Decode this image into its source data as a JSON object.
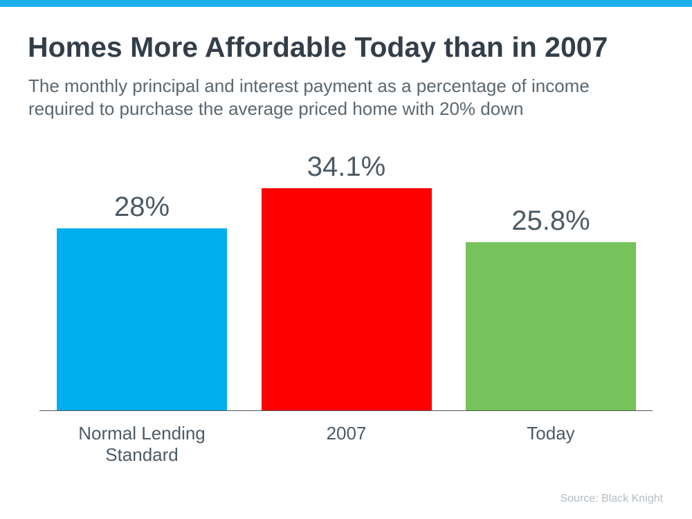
{
  "chart_data": {
    "type": "bar",
    "title": "Homes More Affordable Today than in 2007",
    "subtitle": "The monthly principal and interest payment as a percentage of income required to purchase the average priced home with 20% down",
    "categories": [
      "Normal Lending Standard",
      "2007",
      "Today"
    ],
    "values": [
      28,
      34.1,
      25.8
    ],
    "value_labels": [
      "28%",
      "34.1%",
      "25.8%"
    ],
    "colors": [
      "#00aeef",
      "#ff0000",
      "#76c35b"
    ],
    "source": "Source: Black Knight"
  }
}
